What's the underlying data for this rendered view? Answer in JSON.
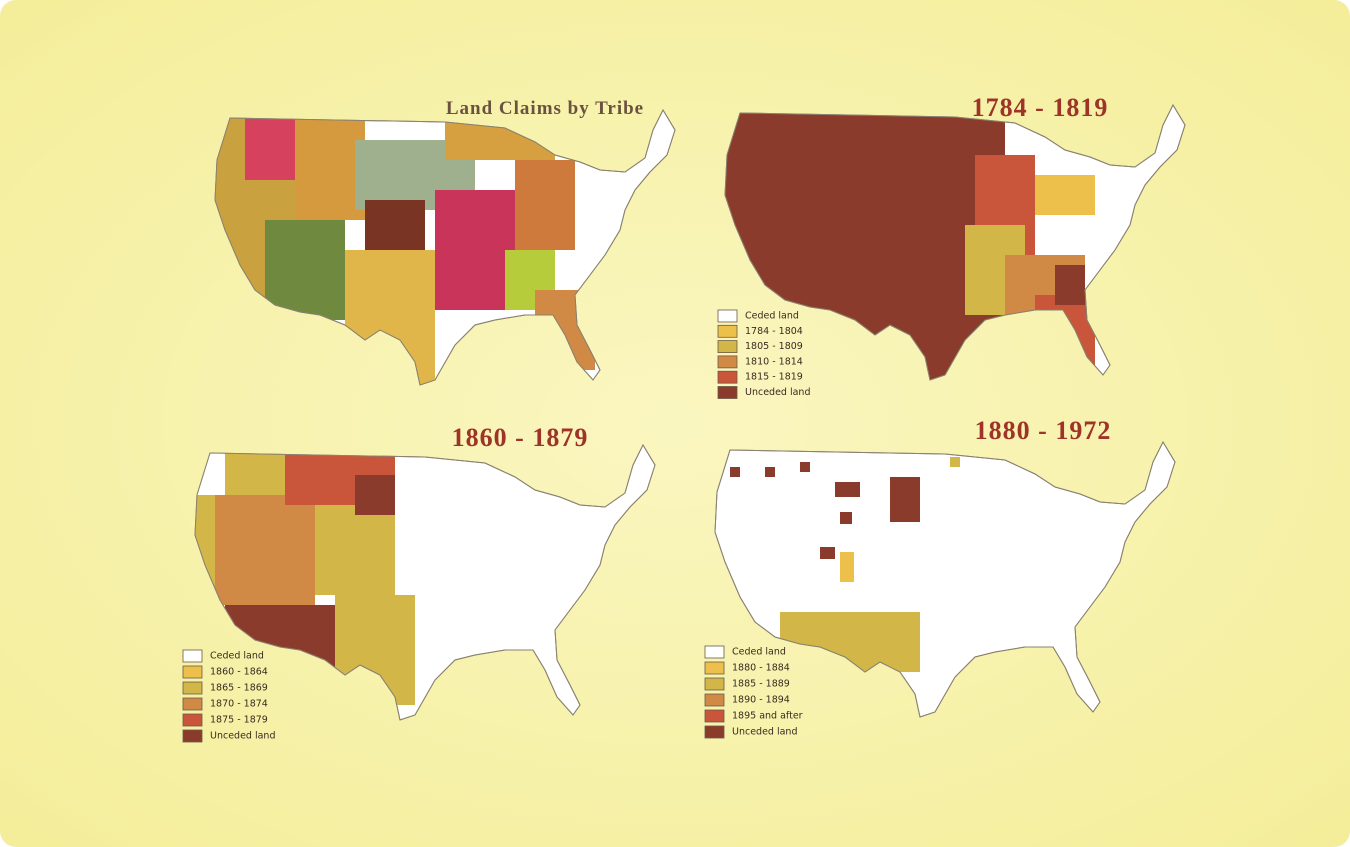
{
  "panels": [
    {
      "title": "Land Claims by Tribe"
    },
    {
      "title": "1784 - 1819",
      "legend": [
        {
          "label": "Ceded land",
          "color": "#ffffff"
        },
        {
          "label": "1784 - 1804",
          "color": "#ecc04a"
        },
        {
          "label": "1805 - 1809",
          "color": "#d2b648"
        },
        {
          "label": "1810 - 1814",
          "color": "#d08a45"
        },
        {
          "label": "1815 - 1819",
          "color": "#c9553a"
        },
        {
          "label": "Unceded land",
          "color": "#8a3b2c"
        }
      ]
    },
    {
      "title": "1860 - 1879",
      "legend": [
        {
          "label": "Ceded land",
          "color": "#ffffff"
        },
        {
          "label": "1860 - 1864",
          "color": "#ecc04a"
        },
        {
          "label": "1865 - 1869",
          "color": "#d2b648"
        },
        {
          "label": "1870 - 1874",
          "color": "#d08a45"
        },
        {
          "label": "1875 - 1879",
          "color": "#c9553a"
        },
        {
          "label": "Unceded land",
          "color": "#8a3b2c"
        }
      ]
    },
    {
      "title": "1880 - 1972",
      "legend": [
        {
          "label": "Ceded land",
          "color": "#ffffff"
        },
        {
          "label": "1880 - 1884",
          "color": "#ecc04a"
        },
        {
          "label": "1885 - 1889",
          "color": "#d2b648"
        },
        {
          "label": "1890 - 1894",
          "color": "#d08a45"
        },
        {
          "label": "1895 and after",
          "color": "#c9553a"
        },
        {
          "label": "Unceded land",
          "color": "#8a3b2c"
        }
      ]
    }
  ]
}
